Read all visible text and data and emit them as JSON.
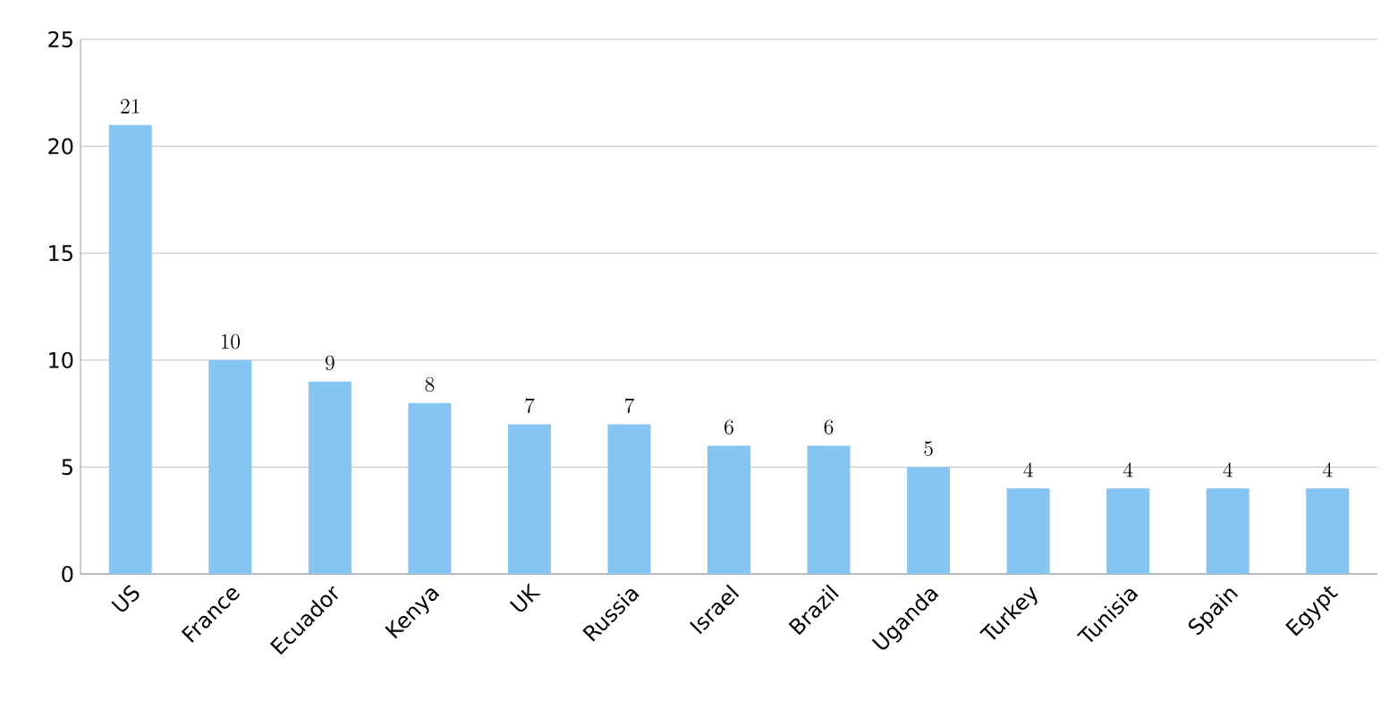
{
  "chart_data": {
    "type": "bar",
    "categories": [
      "US",
      "France",
      "Ecuador",
      "Kenya",
      "UK",
      "Russia",
      "Israel",
      "Brazil",
      "Uganda",
      "Turkey",
      "Tunisia",
      "Spain",
      "Egypt"
    ],
    "values": [
      21,
      10,
      9,
      8,
      7,
      7,
      6,
      6,
      5,
      4,
      4,
      4,
      4
    ],
    "color": "#86c5f2",
    "ylim": [
      0,
      25
    ],
    "yticks": [
      0,
      5,
      10,
      15,
      20,
      25
    ],
    "grid": "y",
    "data_labels": true
  }
}
